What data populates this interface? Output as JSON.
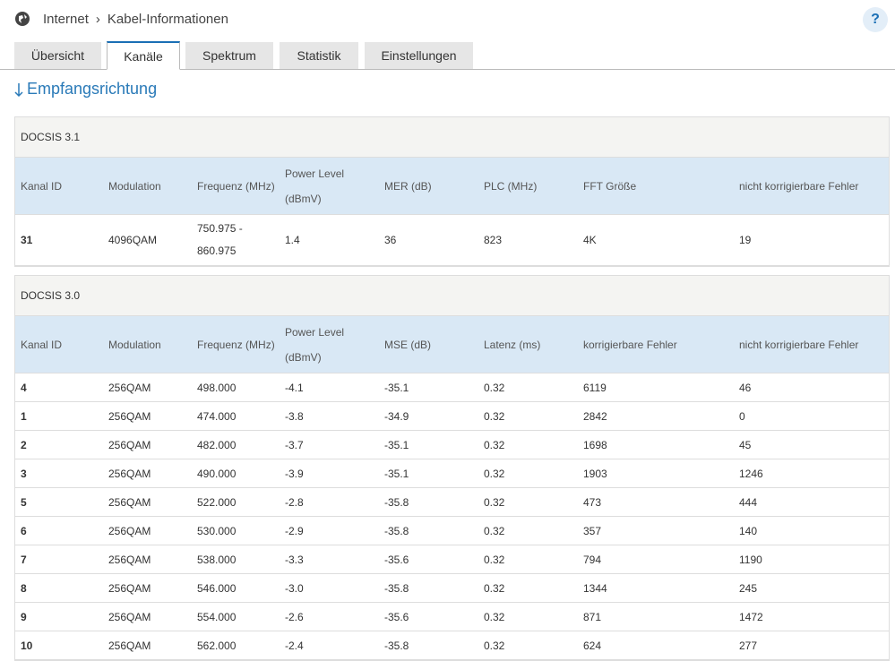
{
  "breadcrumb": [
    "Internet",
    "Kabel-Informationen"
  ],
  "help": "?",
  "tabs": [
    "Übersicht",
    "Kanäle",
    "Spektrum",
    "Statistik",
    "Einstellungen"
  ],
  "section_title": "Empfangsrichtung",
  "tables": [
    {
      "title": "DOCSIS 3.1",
      "columns": [
        "Kanal ID",
        "Modulation",
        "Frequenz (MHz)",
        "Power Level (dBmV)",
        "MER (dB)",
        "PLC (MHz)",
        "FFT Größe",
        "nicht korrigierbare Fehler"
      ],
      "rows": [
        [
          "31",
          "4096QAM",
          "750.975 - 860.975",
          "1.4",
          "36",
          "823",
          "4K",
          "19"
        ]
      ]
    },
    {
      "title": "DOCSIS 3.0",
      "columns": [
        "Kanal ID",
        "Modulation",
        "Frequenz (MHz)",
        "Power Level (dBmV)",
        "MSE (dB)",
        "Latenz (ms)",
        "korrigierbare Fehler",
        "nicht korrigierbare Fehler"
      ],
      "rows": [
        [
          "4",
          "256QAM",
          "498.000",
          "-4.1",
          "-35.1",
          "0.32",
          "6119",
          "46"
        ],
        [
          "1",
          "256QAM",
          "474.000",
          "-3.8",
          "-34.9",
          "0.32",
          "2842",
          "0"
        ],
        [
          "2",
          "256QAM",
          "482.000",
          "-3.7",
          "-35.1",
          "0.32",
          "1698",
          "45"
        ],
        [
          "3",
          "256QAM",
          "490.000",
          "-3.9",
          "-35.1",
          "0.32",
          "1903",
          "1246"
        ],
        [
          "5",
          "256QAM",
          "522.000",
          "-2.8",
          "-35.8",
          "0.32",
          "473",
          "444"
        ],
        [
          "6",
          "256QAM",
          "530.000",
          "-2.9",
          "-35.8",
          "0.32",
          "357",
          "140"
        ],
        [
          "7",
          "256QAM",
          "538.000",
          "-3.3",
          "-35.6",
          "0.32",
          "794",
          "1190"
        ],
        [
          "8",
          "256QAM",
          "546.000",
          "-3.0",
          "-35.8",
          "0.32",
          "1344",
          "245"
        ],
        [
          "9",
          "256QAM",
          "554.000",
          "-2.6",
          "-35.6",
          "0.32",
          "871",
          "1472"
        ],
        [
          "10",
          "256QAM",
          "562.000",
          "-2.4",
          "-35.8",
          "0.32",
          "624",
          "277"
        ]
      ]
    }
  ]
}
